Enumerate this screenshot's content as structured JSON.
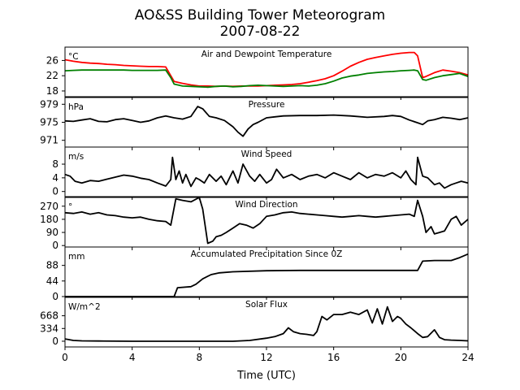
{
  "title_line1": "AO&SS Building Tower Meteorogram",
  "title_line2": "2007-08-22",
  "chart_data": {
    "type": "line",
    "xlabel": "Time (UTC)",
    "xlim": [
      0,
      24
    ],
    "xticks": [
      0,
      4,
      8,
      12,
      16,
      20,
      24
    ],
    "panels": [
      {
        "title": "Air and Dewpoint Temperature",
        "unit": "°C",
        "ylim": [
          16.5,
          29.5
        ],
        "yticks": [
          18,
          22,
          26
        ],
        "series": [
          {
            "color": "#ff0000",
            "x": [
              0,
              0.5,
              1,
              1.5,
              2,
              2.5,
              3,
              3.5,
              4,
              4.5,
              5,
              5.5,
              6,
              6.3,
              6.5,
              7,
              7.5,
              8,
              8.5,
              9,
              9.5,
              10,
              10.5,
              11,
              11.5,
              12,
              12.5,
              13,
              13.5,
              14,
              14.5,
              15,
              15.5,
              16,
              16.5,
              17,
              17.5,
              18,
              18.5,
              19,
              19.5,
              20,
              20.5,
              20.8,
              21,
              21.3,
              21.5,
              22,
              22.5,
              23,
              23.5,
              24
            ],
            "y": [
              26.2,
              25.8,
              25.5,
              25.3,
              25.2,
              25.0,
              24.9,
              24.7,
              24.6,
              24.5,
              24.4,
              24.4,
              24.3,
              22.0,
              20.5,
              20.0,
              19.6,
              19.3,
              19.3,
              19.2,
              19.3,
              19.2,
              19.3,
              19.3,
              19.3,
              19.4,
              19.5,
              19.6,
              19.7,
              19.9,
              20.3,
              20.7,
              21.2,
              22.0,
              23.2,
              24.5,
              25.5,
              26.3,
              26.8,
              27.2,
              27.6,
              27.9,
              28.1,
              28.1,
              27.2,
              21.5,
              21.8,
              22.8,
              23.5,
              23.2,
              22.8,
              22.2
            ]
          },
          {
            "color": "#008000",
            "x": [
              0,
              0.5,
              1,
              1.5,
              2,
              2.5,
              3,
              3.5,
              4,
              4.5,
              5,
              5.5,
              6,
              6.3,
              6.5,
              7,
              7.5,
              8,
              8.5,
              9,
              9.5,
              10,
              10.5,
              11,
              11.5,
              12,
              12.5,
              13,
              13.5,
              14,
              14.5,
              15,
              15.5,
              16,
              16.5,
              17,
              17.5,
              18,
              18.5,
              19,
              19.5,
              20,
              20.5,
              20.8,
              21,
              21.3,
              21.5,
              22,
              22.5,
              23,
              23.5,
              24
            ],
            "y": [
              23.3,
              23.4,
              23.5,
              23.5,
              23.5,
              23.5,
              23.5,
              23.5,
              23.4,
              23.4,
              23.4,
              23.4,
              23.5,
              21.5,
              19.8,
              19.3,
              19.2,
              19.1,
              19.0,
              19.2,
              19.3,
              19.1,
              19.2,
              19.4,
              19.5,
              19.4,
              19.3,
              19.2,
              19.3,
              19.4,
              19.3,
              19.5,
              19.9,
              20.6,
              21.4,
              21.9,
              22.2,
              22.6,
              22.8,
              23.0,
              23.1,
              23.3,
              23.4,
              23.5,
              23.3,
              21.0,
              20.8,
              21.5,
              22.0,
              22.3,
              22.6,
              21.8
            ]
          }
        ]
      },
      {
        "title": "Pressure",
        "unit": "hPa",
        "ylim": [
          969.5,
          980.5
        ],
        "yticks": [
          971,
          975,
          979
        ],
        "series": [
          {
            "color": "#000000",
            "x": [
              0,
              0.5,
              1,
              1.5,
              2,
              2.5,
              3,
              3.5,
              4,
              4.5,
              5,
              5.5,
              6,
              6.5,
              7,
              7.5,
              7.9,
              8.2,
              8.6,
              9,
              9.5,
              10,
              10.3,
              10.6,
              10.9,
              11.2,
              11.5,
              12,
              12.5,
              13,
              14,
              15,
              16,
              17,
              18,
              19,
              19.5,
              20,
              20.5,
              21,
              21.3,
              21.6,
              22,
              22.5,
              23,
              23.5,
              24
            ],
            "y": [
              975.3,
              975.2,
              975.5,
              975.8,
              975.2,
              975.1,
              975.6,
              975.8,
              975.4,
              975.0,
              975.3,
              976.0,
              976.4,
              976.0,
              975.7,
              976.3,
              978.5,
              978.0,
              976.3,
              976.0,
              975.4,
              974.0,
              972.8,
              971.9,
              973.5,
              974.5,
              975.0,
              976.0,
              976.2,
              976.4,
              976.5,
              976.5,
              976.6,
              976.4,
              976.1,
              976.3,
              976.5,
              976.3,
              975.5,
              974.9,
              974.5,
              975.3,
              975.6,
              976.1,
              975.9,
              975.6,
              976.0
            ]
          }
        ]
      },
      {
        "title": "Wind Speed",
        "unit": "m/s",
        "ylim": [
          -1.5,
          13
        ],
        "yticks": [
          0,
          4,
          8
        ],
        "series": [
          {
            "color": "#000000",
            "x": [
              0,
              0.3,
              0.6,
              1,
              1.5,
              2,
              2.5,
              3,
              3.5,
              4,
              4.5,
              5,
              5.5,
              6,
              6.3,
              6.4,
              6.6,
              6.8,
              7,
              7.2,
              7.5,
              7.8,
              8,
              8.3,
              8.6,
              9,
              9.3,
              9.6,
              10,
              10.3,
              10.6,
              11,
              11.3,
              11.6,
              12,
              12.3,
              12.6,
              13,
              13.5,
              14,
              14.5,
              15,
              15.5,
              16,
              16.5,
              17,
              17.5,
              18,
              18.5,
              19,
              19.5,
              20,
              20.3,
              20.6,
              20.9,
              21,
              21.3,
              21.6,
              22,
              22.3,
              22.6,
              23,
              23.3,
              23.6,
              24
            ],
            "y": [
              5.0,
              4.5,
              3.0,
              2.5,
              3.2,
              3.0,
              3.6,
              4.2,
              4.8,
              4.5,
              3.9,
              3.5,
              2.5,
              1.6,
              3.5,
              10.0,
              3.5,
              6.0,
              2.5,
              5.0,
              1.5,
              4.0,
              3.5,
              2.5,
              5.0,
              3.0,
              4.5,
              2.0,
              6.0,
              2.5,
              8.0,
              4.5,
              3.0,
              5.0,
              2.5,
              3.5,
              6.5,
              4.0,
              5.0,
              3.5,
              4.5,
              5.0,
              4.0,
              5.5,
              4.5,
              3.5,
              5.5,
              4.0,
              5.0,
              4.5,
              5.5,
              4.0,
              6.0,
              3.5,
              2.0,
              10.0,
              4.5,
              4.0,
              2.0,
              2.5,
              1.0,
              2.0,
              2.5,
              3.0,
              2.5
            ]
          }
        ]
      },
      {
        "title": "Wind Direction",
        "unit": "°",
        "ylim": [
          -10,
          330
        ],
        "yticks": [
          0,
          90,
          180,
          270
        ],
        "series": [
          {
            "color": "#000000",
            "x": [
              0,
              0.5,
              1,
              1.5,
              2,
              2.5,
              3,
              3.5,
              4,
              4.5,
              5,
              5.5,
              6,
              6.3,
              6.6,
              7,
              7.5,
              8,
              8.2,
              8.5,
              8.8,
              9,
              9.3,
              9.6,
              10,
              10.4,
              10.8,
              11.2,
              11.6,
              12,
              12.5,
              13,
              13.5,
              14,
              14.5,
              15,
              15.5,
              16,
              16.5,
              17,
              17.5,
              18,
              18.5,
              19,
              19.5,
              20,
              20.5,
              20.8,
              21,
              21.3,
              21.5,
              21.8,
              22,
              22.3,
              22.6,
              23,
              23.3,
              23.6,
              24
            ],
            "y": [
              225,
              220,
              230,
              215,
              225,
              210,
              205,
              195,
              190,
              195,
              180,
              170,
              165,
              140,
              320,
              310,
              300,
              330,
              250,
              15,
              30,
              60,
              70,
              90,
              120,
              150,
              140,
              120,
              150,
              200,
              210,
              225,
              230,
              220,
              215,
              210,
              205,
              200,
              195,
              200,
              205,
              200,
              195,
              200,
              205,
              210,
              215,
              200,
              310,
              200,
              90,
              130,
              80,
              90,
              100,
              180,
              200,
              140,
              180
            ]
          }
        ]
      },
      {
        "title": "Accumulated Precipitation Since 0Z",
        "unit": "mm",
        "ylim": [
          0,
          140
        ],
        "yticks": [
          0,
          44,
          88
        ],
        "series": [
          {
            "color": "#000000",
            "x": [
              0,
              6.5,
              6.7,
              7.5,
              7.8,
              8.2,
              8.7,
              9.2,
              10,
              12,
              14,
              16,
              18,
              20,
              21.0,
              21.3,
              22,
              23,
              23.5,
              24
            ],
            "y": [
              0,
              0,
              25,
              28,
              35,
              50,
              62,
              67,
              70,
              73,
              74,
              74,
              74,
              74,
              74,
              100,
              102,
              102,
              110,
              120
            ]
          }
        ]
      },
      {
        "title": "Solar Flux",
        "unit": "W/m^2",
        "ylim": [
          -150,
          1150
        ],
        "yticks": [
          0,
          334,
          668
        ],
        "series": [
          {
            "color": "#000000",
            "x": [
              0,
              0.5,
              1,
              2,
              4,
              6,
              8,
              10,
              11,
              12,
              12.5,
              13,
              13.3,
              13.6,
              14,
              14.4,
              14.8,
              15,
              15.3,
              15.6,
              16,
              16.5,
              17,
              17.5,
              18,
              18.3,
              18.6,
              18.9,
              19.2,
              19.5,
              19.8,
              20,
              20.3,
              20.6,
              21,
              21.3,
              21.6,
              22,
              22.3,
              22.6,
              23,
              23.5,
              24
            ],
            "y": [
              60,
              20,
              10,
              5,
              0,
              0,
              0,
              0,
              20,
              80,
              120,
              200,
              350,
              250,
              200,
              180,
              150,
              250,
              650,
              560,
              700,
              700,
              760,
              700,
              820,
              480,
              850,
              450,
              900,
              520,
              650,
              600,
              450,
              350,
              200,
              100,
              120,
              300,
              100,
              40,
              30,
              20,
              10
            ]
          }
        ]
      }
    ]
  }
}
